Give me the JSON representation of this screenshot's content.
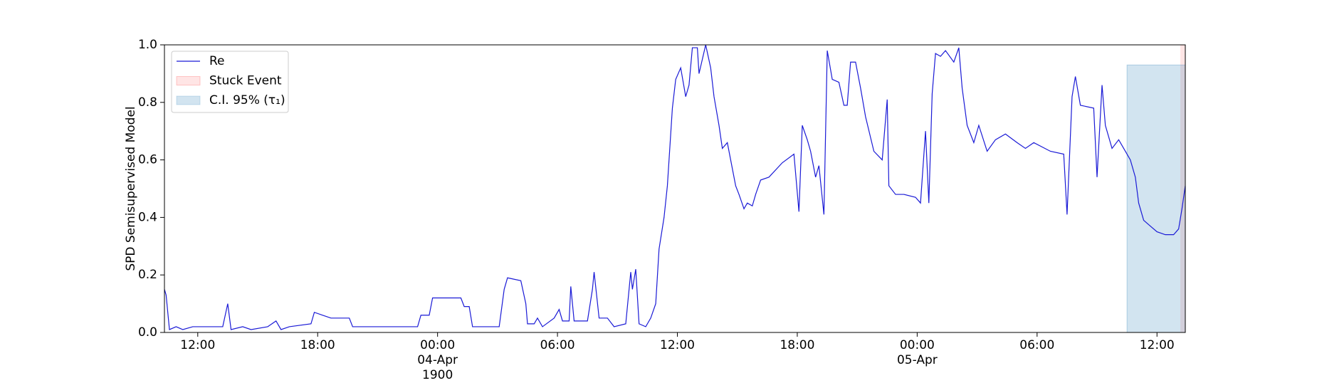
{
  "chart_data": {
    "type": "line",
    "ylabel": "SPD Semisupervised Model",
    "x": [
      "1900-04-03 10:20",
      "1900-04-03 10:25",
      "1900-04-03 10:35",
      "1900-04-03 10:55",
      "1900-04-03 11:15",
      "1900-04-03 11:45",
      "1900-04-03 12:35",
      "1900-04-03 13:15",
      "1900-04-03 13:30",
      "1900-04-03 13:40",
      "1900-04-03 14:15",
      "1900-04-03 14:40",
      "1900-04-03 15:30",
      "1900-04-03 15:55",
      "1900-04-03 16:10",
      "1900-04-03 16:35",
      "1900-04-03 17:40",
      "1900-04-03 17:50",
      "1900-04-03 18:15",
      "1900-04-03 18:40",
      "1900-04-03 19:35",
      "1900-04-03 19:45",
      "1900-04-03 23:00",
      "1900-04-03 23:10",
      "1900-04-03 23:35",
      "1900-04-03 23:45",
      "1900-04-04 01:10",
      "1900-04-04 01:20",
      "1900-04-04 01:35",
      "1900-04-04 01:45",
      "1900-04-04 03:05",
      "1900-04-04 03:20",
      "1900-04-04 03:30",
      "1900-04-04 04:10",
      "1900-04-04 04:25",
      "1900-04-04 04:30",
      "1900-04-04 04:50",
      "1900-04-04 05:00",
      "1900-04-04 05:15",
      "1900-04-04 05:50",
      "1900-04-04 06:05",
      "1900-04-04 06:15",
      "1900-04-04 06:35",
      "1900-04-04 06:40",
      "1900-04-04 06:50",
      "1900-04-04 07:30",
      "1900-04-04 07:45",
      "1900-04-04 07:50",
      "1900-04-04 08:05",
      "1900-04-04 08:30",
      "1900-04-04 08:50",
      "1900-04-04 09:25",
      "1900-04-04 09:40",
      "1900-04-04 09:45",
      "1900-04-04 09:55",
      "1900-04-04 10:05",
      "1900-04-04 10:25",
      "1900-04-04 10:40",
      "1900-04-04 10:55",
      "1900-04-04 11:05",
      "1900-04-04 11:20",
      "1900-04-04 11:30",
      "1900-04-04 11:45",
      "1900-04-04 11:55",
      "1900-04-04 12:10",
      "1900-04-04 12:25",
      "1900-04-04 12:35",
      "1900-04-04 12:45",
      "1900-04-04 13:00",
      "1900-04-04 13:05",
      "1900-04-04 13:15",
      "1900-04-04 13:25",
      "1900-04-04 13:40",
      "1900-04-04 13:50",
      "1900-04-04 14:05",
      "1900-04-04 14:15",
      "1900-04-04 14:30",
      "1900-04-04 14:40",
      "1900-04-04 14:55",
      "1900-04-04 15:05",
      "1900-04-04 15:20",
      "1900-04-04 15:30",
      "1900-04-04 15:45",
      "1900-04-04 15:55",
      "1900-04-04 16:10",
      "1900-04-04 16:35",
      "1900-04-04 17:15",
      "1900-04-04 17:50",
      "1900-04-04 18:05",
      "1900-04-04 18:15",
      "1900-04-04 18:30",
      "1900-04-04 18:40",
      "1900-04-04 18:55",
      "1900-04-04 19:05",
      "1900-04-04 19:20",
      "1900-04-04 19:30",
      "1900-04-04 19:45",
      "1900-04-04 20:05",
      "1900-04-04 20:20",
      "1900-04-04 20:30",
      "1900-04-04 20:40",
      "1900-04-04 20:55",
      "1900-04-04 21:10",
      "1900-04-04 21:25",
      "1900-04-04 21:50",
      "1900-04-04 22:15",
      "1900-04-04 22:30",
      "1900-04-04 22:35",
      "1900-04-04 22:55",
      "1900-04-04 23:20",
      "1900-04-04 23:55",
      "1900-04-05 00:10",
      "1900-04-05 00:25",
      "1900-04-05 00:35",
      "1900-04-05 00:45",
      "1900-04-05 00:55",
      "1900-04-05 01:10",
      "1900-04-05 01:25",
      "1900-04-05 01:50",
      "1900-04-05 02:05",
      "1900-04-05 02:15",
      "1900-04-05 02:30",
      "1900-04-05 02:50",
      "1900-04-05 03:05",
      "1900-04-05 03:30",
      "1900-04-05 03:55",
      "1900-04-05 04:25",
      "1900-04-05 05:00",
      "1900-04-05 05:25",
      "1900-04-05 05:50",
      "1900-04-05 06:40",
      "1900-04-05 07:20",
      "1900-04-05 07:30",
      "1900-04-05 07:45",
      "1900-04-05 07:55",
      "1900-04-05 08:10",
      "1900-04-05 08:50",
      "1900-04-05 09:00",
      "1900-04-05 09:15",
      "1900-04-05 09:25",
      "1900-04-05 09:45",
      "1900-04-05 10:05",
      "1900-04-05 10:25",
      "1900-04-05 10:40",
      "1900-04-05 10:55",
      "1900-04-05 11:05",
      "1900-04-05 11:20",
      "1900-04-05 11:40",
      "1900-04-05 12:00",
      "1900-04-05 12:25",
      "1900-04-05 12:50",
      "1900-04-05 13:05",
      "1900-04-05 13:15",
      "1900-04-05 13:25"
    ],
    "series": [
      {
        "name": "Re",
        "color": "#1a1ad6",
        "values": [
          0.15,
          0.13,
          0.01,
          0.02,
          0.01,
          0.02,
          0.02,
          0.02,
          0.1,
          0.01,
          0.02,
          0.01,
          0.02,
          0.04,
          0.01,
          0.02,
          0.03,
          0.07,
          0.06,
          0.05,
          0.05,
          0.02,
          0.02,
          0.06,
          0.06,
          0.12,
          0.12,
          0.09,
          0.09,
          0.02,
          0.02,
          0.15,
          0.19,
          0.18,
          0.1,
          0.03,
          0.03,
          0.05,
          0.02,
          0.05,
          0.08,
          0.04,
          0.04,
          0.16,
          0.04,
          0.04,
          0.15,
          0.21,
          0.05,
          0.05,
          0.02,
          0.03,
          0.21,
          0.15,
          0.22,
          0.03,
          0.02,
          0.05,
          0.1,
          0.29,
          0.4,
          0.51,
          0.78,
          0.88,
          0.92,
          0.82,
          0.86,
          0.99,
          0.99,
          0.9,
          0.95,
          1.0,
          0.92,
          0.82,
          0.72,
          0.64,
          0.66,
          0.6,
          0.51,
          0.48,
          0.43,
          0.45,
          0.44,
          0.48,
          0.53,
          0.54,
          0.59,
          0.62,
          0.42,
          0.72,
          0.67,
          0.63,
          0.54,
          0.58,
          0.41,
          0.98,
          0.88,
          0.87,
          0.79,
          0.79,
          0.94,
          0.94,
          0.85,
          0.75,
          0.63,
          0.6,
          0.81,
          0.51,
          0.48,
          0.48,
          0.47,
          0.45,
          0.7,
          0.45,
          0.83,
          0.97,
          0.96,
          0.98,
          0.94,
          0.99,
          0.85,
          0.72,
          0.66,
          0.72,
          0.63,
          0.67,
          0.69,
          0.66,
          0.64,
          0.66,
          0.63,
          0.62,
          0.41,
          0.82,
          0.89,
          0.79,
          0.78,
          0.54,
          0.86,
          0.72,
          0.64,
          0.67,
          0.63,
          0.6,
          0.54,
          0.45,
          0.39,
          0.37,
          0.35,
          0.34,
          0.34,
          0.36,
          0.43,
          0.51
        ]
      }
    ],
    "spans": [
      {
        "name": "Stuck Event",
        "color": "#ff0000",
        "opacity": 0.1,
        "x": [
          "1900-04-05 13:10",
          "1900-04-05 13:25"
        ]
      },
      {
        "name": "C.I. 95% (τ₁)",
        "color": "#1f77b4",
        "opacity": 0.2,
        "x": [
          "1900-04-05 10:30",
          "1900-04-05 13:25"
        ],
        "y": [
          0,
          0.93
        ]
      }
    ],
    "xlim": [
      "1900-04-03 10:20",
      "1900-04-05 13:25"
    ],
    "xticks": [
      {
        "value": "1900-04-03 12:00",
        "label": "12:00"
      },
      {
        "value": "1900-04-03 18:00",
        "label": "18:00"
      },
      {
        "value": "1900-04-04 00:00",
        "label": "00:00\n04-Apr\n1900"
      },
      {
        "value": "1900-04-04 06:00",
        "label": "06:00"
      },
      {
        "value": "1900-04-04 12:00",
        "label": "12:00"
      },
      {
        "value": "1900-04-04 18:00",
        "label": "18:00"
      },
      {
        "value": "1900-04-05 00:00",
        "label": "00:00\n05-Apr"
      },
      {
        "value": "1900-04-05 06:00",
        "label": "06:00"
      },
      {
        "value": "1900-04-05 12:00",
        "label": "12:00"
      }
    ],
    "ylim": [
      0,
      1
    ],
    "yticks": [
      {
        "value": 0,
        "label": "0.0"
      },
      0.2,
      0.4,
      0.6,
      0.8,
      {
        "value": 1,
        "label": "1.0"
      }
    ],
    "legend": "upper left"
  }
}
